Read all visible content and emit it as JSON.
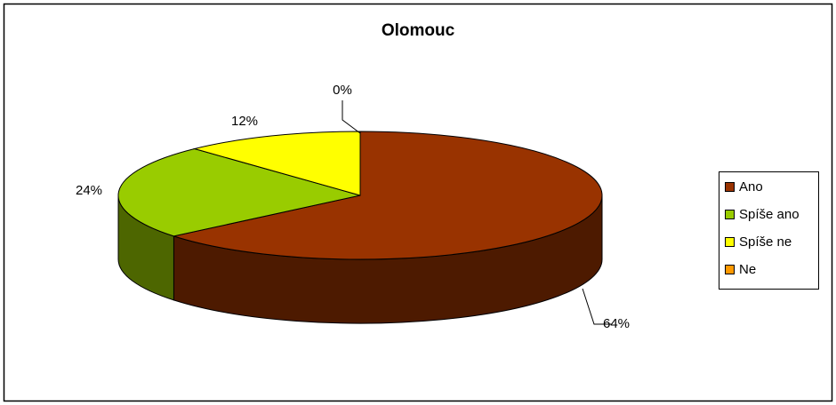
{
  "chart_data": {
    "type": "pie3d",
    "title": "Olomouc",
    "categories": [
      "Ano",
      "Spíše ano",
      "Spíše ne",
      "Ne"
    ],
    "values": [
      64,
      24,
      12,
      0
    ],
    "value_labels": [
      "64%",
      "24%",
      "12%",
      "0%"
    ],
    "colors": [
      "#993300",
      "#99cc00",
      "#ffff00",
      "#ff9900"
    ],
    "legend": "right"
  }
}
